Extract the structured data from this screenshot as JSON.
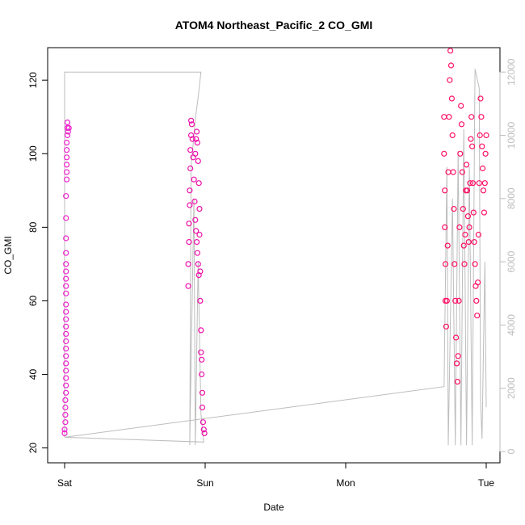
{
  "chart_data": {
    "type": "scatter",
    "title": "ATOM4 Northeast_Pacific_2 CO_GMI",
    "xlabel": "Date",
    "ylabel": "CO_GMI",
    "x_ticks": [
      "Sat",
      "Sun",
      "Mon",
      "Tue"
    ],
    "x_range_days": [
      -0.2,
      3.1
    ],
    "ylim": [
      20,
      130
    ],
    "y_ticks": [
      20,
      40,
      60,
      80,
      100,
      120
    ],
    "y2lim": [
      -400,
      12500
    ],
    "y2_ticks": [
      0,
      2000,
      4000,
      6000,
      8000,
      10000,
      12000
    ],
    "y2_label": "",
    "grid": false,
    "colors": {
      "points_sat": "#ee22cc",
      "points_sun": "#ee11aa",
      "points_tue": "#ff1166",
      "altitude_line": "#bdbdbd",
      "axis": "#000000",
      "right_axis": "#bdbdbd"
    },
    "series": [
      {
        "name": "",
        "values": [
          {
            "x": 0.0,
            "y": 24
          },
          {
            "x": 0.0,
            "y": 25
          },
          {
            "x": 0.005,
            "y": 27
          },
          {
            "x": 0.005,
            "y": 29
          },
          {
            "x": 0.005,
            "y": 31
          },
          {
            "x": 0.005,
            "y": 33
          },
          {
            "x": 0.01,
            "y": 35
          },
          {
            "x": 0.01,
            "y": 37
          },
          {
            "x": 0.01,
            "y": 39
          },
          {
            "x": 0.01,
            "y": 41
          },
          {
            "x": 0.01,
            "y": 43
          },
          {
            "x": 0.01,
            "y": 45
          },
          {
            "x": 0.01,
            "y": 47
          },
          {
            "x": 0.01,
            "y": 49
          },
          {
            "x": 0.01,
            "y": 51
          },
          {
            "x": 0.01,
            "y": 53
          },
          {
            "x": 0.01,
            "y": 55
          },
          {
            "x": 0.01,
            "y": 57
          },
          {
            "x": 0.01,
            "y": 59
          },
          {
            "x": 0.01,
            "y": 62
          },
          {
            "x": 0.01,
            "y": 64
          },
          {
            "x": 0.01,
            "y": 66
          },
          {
            "x": 0.01,
            "y": 68
          },
          {
            "x": 0.01,
            "y": 70
          },
          {
            "x": 0.01,
            "y": 73
          },
          {
            "x": 0.01,
            "y": 77
          },
          {
            "x": 0.01,
            "y": 82.5
          },
          {
            "x": 0.01,
            "y": 88.5
          },
          {
            "x": 0.015,
            "y": 93
          },
          {
            "x": 0.015,
            "y": 95
          },
          {
            "x": 0.015,
            "y": 97
          },
          {
            "x": 0.015,
            "y": 99
          },
          {
            "x": 0.015,
            "y": 101
          },
          {
            "x": 0.015,
            "y": 103
          },
          {
            "x": 0.02,
            "y": 105
          },
          {
            "x": 0.02,
            "y": 107
          },
          {
            "x": 0.02,
            "y": 108.5
          },
          {
            "x": 0.025,
            "y": 106
          },
          {
            "x": 0.03,
            "y": 107
          },
          {
            "x": 0.88,
            "y": 64
          },
          {
            "x": 0.88,
            "y": 70
          },
          {
            "x": 0.885,
            "y": 76
          },
          {
            "x": 0.885,
            "y": 81
          },
          {
            "x": 0.89,
            "y": 86
          },
          {
            "x": 0.89,
            "y": 90
          },
          {
            "x": 0.895,
            "y": 96
          },
          {
            "x": 0.895,
            "y": 101
          },
          {
            "x": 0.9,
            "y": 105
          },
          {
            "x": 0.9,
            "y": 109
          },
          {
            "x": 0.905,
            "y": 108
          },
          {
            "x": 0.91,
            "y": 104
          },
          {
            "x": 0.915,
            "y": 99
          },
          {
            "x": 0.92,
            "y": 93
          },
          {
            "x": 0.925,
            "y": 87
          },
          {
            "x": 0.93,
            "y": 82
          },
          {
            "x": 0.935,
            "y": 79
          },
          {
            "x": 0.94,
            "y": 76
          },
          {
            "x": 0.945,
            "y": 73
          },
          {
            "x": 0.95,
            "y": 70
          },
          {
            "x": 0.955,
            "y": 67
          },
          {
            "x": 0.93,
            "y": 100
          },
          {
            "x": 0.935,
            "y": 104
          },
          {
            "x": 0.94,
            "y": 106
          },
          {
            "x": 0.945,
            "y": 103
          },
          {
            "x": 0.95,
            "y": 98
          },
          {
            "x": 0.955,
            "y": 92
          },
          {
            "x": 0.96,
            "y": 85
          },
          {
            "x": 0.96,
            "y": 78
          },
          {
            "x": 0.965,
            "y": 68
          },
          {
            "x": 0.965,
            "y": 60
          },
          {
            "x": 0.97,
            "y": 52
          },
          {
            "x": 0.97,
            "y": 46
          },
          {
            "x": 0.975,
            "y": 44
          },
          {
            "x": 0.975,
            "y": 40
          },
          {
            "x": 0.98,
            "y": 35
          },
          {
            "x": 0.98,
            "y": 31
          },
          {
            "x": 0.985,
            "y": 27
          },
          {
            "x": 0.99,
            "y": 25
          },
          {
            "x": 0.995,
            "y": 24
          },
          {
            "x": 2.7,
            "y": 110
          },
          {
            "x": 2.7,
            "y": 100
          },
          {
            "x": 2.705,
            "y": 90
          },
          {
            "x": 2.705,
            "y": 80
          },
          {
            "x": 2.71,
            "y": 70
          },
          {
            "x": 2.71,
            "y": 60
          },
          {
            "x": 2.715,
            "y": 53
          },
          {
            "x": 2.72,
            "y": 60
          },
          {
            "x": 2.725,
            "y": 75
          },
          {
            "x": 2.73,
            "y": 95
          },
          {
            "x": 2.735,
            "y": 110
          },
          {
            "x": 2.74,
            "y": 120
          },
          {
            "x": 2.745,
            "y": 128
          },
          {
            "x": 2.75,
            "y": 124
          },
          {
            "x": 2.755,
            "y": 115
          },
          {
            "x": 2.76,
            "y": 105
          },
          {
            "x": 2.765,
            "y": 95
          },
          {
            "x": 2.77,
            "y": 85
          },
          {
            "x": 2.775,
            "y": 70
          },
          {
            "x": 2.78,
            "y": 60
          },
          {
            "x": 2.785,
            "y": 50
          },
          {
            "x": 2.79,
            "y": 43
          },
          {
            "x": 2.795,
            "y": 38
          },
          {
            "x": 2.8,
            "y": 45
          },
          {
            "x": 2.805,
            "y": 60
          },
          {
            "x": 2.81,
            "y": 80
          },
          {
            "x": 2.815,
            "y": 100
          },
          {
            "x": 2.82,
            "y": 113
          },
          {
            "x": 2.825,
            "y": 108
          },
          {
            "x": 2.83,
            "y": 95
          },
          {
            "x": 2.835,
            "y": 85
          },
          {
            "x": 2.84,
            "y": 75
          },
          {
            "x": 2.845,
            "y": 70
          },
          {
            "x": 2.85,
            "y": 78
          },
          {
            "x": 2.855,
            "y": 90
          },
          {
            "x": 2.86,
            "y": 97
          },
          {
            "x": 2.865,
            "y": 90
          },
          {
            "x": 2.87,
            "y": 83
          },
          {
            "x": 2.875,
            "y": 76
          },
          {
            "x": 2.88,
            "y": 80
          },
          {
            "x": 2.885,
            "y": 92
          },
          {
            "x": 2.89,
            "y": 104
          },
          {
            "x": 2.895,
            "y": 110
          },
          {
            "x": 2.9,
            "y": 102
          },
          {
            "x": 2.905,
            "y": 92
          },
          {
            "x": 2.91,
            "y": 84
          },
          {
            "x": 2.915,
            "y": 76
          },
          {
            "x": 2.92,
            "y": 70
          },
          {
            "x": 2.925,
            "y": 64
          },
          {
            "x": 2.93,
            "y": 60
          },
          {
            "x": 2.935,
            "y": 56
          },
          {
            "x": 2.94,
            "y": 65
          },
          {
            "x": 2.945,
            "y": 78
          },
          {
            "x": 2.95,
            "y": 92
          },
          {
            "x": 2.955,
            "y": 105
          },
          {
            "x": 2.96,
            "y": 115
          },
          {
            "x": 2.965,
            "y": 110
          },
          {
            "x": 2.97,
            "y": 102
          },
          {
            "x": 2.975,
            "y": 96
          },
          {
            "x": 2.98,
            "y": 90
          },
          {
            "x": 2.985,
            "y": 84
          },
          {
            "x": 2.99,
            "y": 92
          },
          {
            "x": 2.995,
            "y": 100
          },
          {
            "x": 3.0,
            "y": 105
          }
        ]
      }
    ],
    "altitude_trace": [
      {
        "x": 0.0,
        "y2": 450
      },
      {
        "x": 0.0,
        "y2": 12000
      },
      {
        "x": 0.97,
        "y2": 12000
      },
      {
        "x": 0.95,
        "y2": 11200
      },
      {
        "x": 0.93,
        "y2": 10500
      },
      {
        "x": 0.9,
        "y2": 9000
      },
      {
        "x": 0.89,
        "y2": 200
      },
      {
        "x": 0.92,
        "y2": 8000
      },
      {
        "x": 0.93,
        "y2": 200
      },
      {
        "x": 0.95,
        "y2": 6000
      },
      {
        "x": 0.97,
        "y2": 1200
      },
      {
        "x": 0.99,
        "y2": 300
      },
      {
        "x": 0.0,
        "y2": 450
      },
      {
        "x": 2.7,
        "y2": 2050
      },
      {
        "x": 2.72,
        "y2": 9000
      },
      {
        "x": 2.73,
        "y2": 200
      },
      {
        "x": 2.76,
        "y2": 8000
      },
      {
        "x": 2.78,
        "y2": 200
      },
      {
        "x": 2.8,
        "y2": 9500
      },
      {
        "x": 2.82,
        "y2": 200
      },
      {
        "x": 2.84,
        "y2": 10200
      },
      {
        "x": 2.86,
        "y2": 200
      },
      {
        "x": 2.88,
        "y2": 9000
      },
      {
        "x": 2.9,
        "y2": 200
      },
      {
        "x": 2.92,
        "y2": 12100
      },
      {
        "x": 2.95,
        "y2": 11500
      },
      {
        "x": 2.96,
        "y2": 1600
      },
      {
        "x": 2.97,
        "y2": 400
      },
      {
        "x": 2.99,
        "y2": 6000
      },
      {
        "x": 3.0,
        "y2": 1400
      }
    ]
  }
}
